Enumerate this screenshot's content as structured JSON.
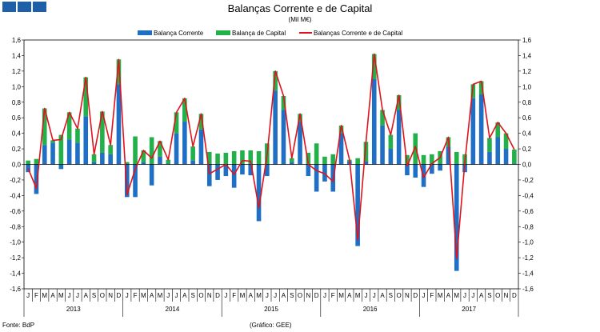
{
  "header": {
    "title": "Balanças Corrente e de Capital",
    "subtitle": "(Mil M€)"
  },
  "footer": {
    "source": "Fonte: BdP",
    "credit": "(Gráfico: GEE)"
  },
  "colors": {
    "current": "#1f6fc5",
    "capital": "#22b04b",
    "total": "#e0121b",
    "logo": "#1f5fa8"
  },
  "chart_data": {
    "type": "bar",
    "title": "Balanças Corrente e de Capital",
    "subtitle": "(Mil M€)",
    "ylim": [
      -1.6,
      1.6
    ],
    "yticks": [
      "1,6",
      "1,4",
      "1,2",
      "1,0",
      "0,8",
      "0,6",
      "0,4",
      "0,2",
      "0,0",
      "-0,2",
      "-0,4",
      "-0,6",
      "-0,8",
      "-1,0",
      "-1,2",
      "-1,4",
      "-1,6"
    ],
    "month_labels": [
      "J",
      "F",
      "M",
      "A",
      "M",
      "J",
      "J",
      "A",
      "S",
      "O",
      "N",
      "D"
    ],
    "year_labels": [
      "2013",
      "2014",
      "2015",
      "2016",
      "2017"
    ],
    "legend": [
      "Balança Corrente",
      "Balança de Capital",
      "Balanças Corrente e de Capital"
    ],
    "series": [
      {
        "name": "Balança Corrente",
        "type": "bar",
        "values": [
          -0.1,
          -0.38,
          0.25,
          0.28,
          -0.06,
          0.32,
          0.28,
          0.62,
          0.03,
          0.15,
          0.13,
          1.03,
          -0.42,
          -0.42,
          0.03,
          -0.27,
          0.1,
          0.01,
          0.4,
          0.55,
          0.05,
          0.45,
          -0.28,
          -0.2,
          -0.15,
          -0.3,
          -0.13,
          -0.14,
          -0.73,
          -0.15,
          0.95,
          0.7,
          0.03,
          0.55,
          -0.15,
          -0.35,
          -0.22,
          -0.35,
          0.4,
          0.04,
          -1.05,
          0.04,
          1.1,
          0.5,
          0.2,
          0.7,
          -0.14,
          -0.17,
          -0.29,
          -0.12,
          -0.08,
          0.23,
          -1.37,
          -0.1,
          0.85,
          0.9,
          0.16,
          0.35,
          0.2,
          0.01
        ]
      },
      {
        "name": "Balança de Capital",
        "type": "bar",
        "values": [
          0.05,
          0.07,
          0.47,
          0.03,
          0.38,
          0.35,
          0.18,
          0.5,
          0.1,
          0.53,
          0.12,
          0.32,
          0.03,
          0.36,
          0.15,
          0.35,
          0.2,
          0.05,
          0.27,
          0.3,
          0.18,
          0.2,
          0.16,
          0.14,
          0.15,
          0.17,
          0.18,
          0.18,
          0.17,
          0.27,
          0.25,
          0.18,
          0.05,
          0.1,
          0.15,
          0.27,
          0.1,
          0.13,
          0.1,
          0.02,
          0.08,
          0.25,
          0.32,
          0.2,
          0.18,
          0.19,
          0.12,
          0.4,
          0.12,
          0.13,
          0.17,
          0.12,
          0.16,
          0.13,
          0.18,
          0.17,
          0.18,
          0.19,
          0.2,
          0.18
        ]
      },
      {
        "name": "Balanças Corrente e de Capital",
        "type": "line",
        "values": [
          -0.05,
          -0.31,
          0.72,
          0.31,
          0.32,
          0.67,
          0.46,
          1.12,
          0.13,
          0.68,
          0.25,
          1.35,
          -0.39,
          -0.06,
          0.18,
          0.08,
          0.3,
          0.06,
          0.67,
          0.85,
          0.23,
          0.65,
          -0.12,
          -0.06,
          0.0,
          -0.13,
          0.05,
          0.04,
          -0.56,
          0.12,
          1.2,
          0.88,
          0.08,
          0.65,
          0.0,
          -0.08,
          -0.12,
          -0.22,
          0.5,
          0.06,
          -0.97,
          0.29,
          1.42,
          0.7,
          0.38,
          0.89,
          -0.02,
          0.23,
          -0.17,
          0.01,
          0.09,
          0.35,
          -1.21,
          0.03,
          1.03,
          1.07,
          0.34,
          0.54,
          0.4,
          0.19
        ]
      }
    ]
  }
}
